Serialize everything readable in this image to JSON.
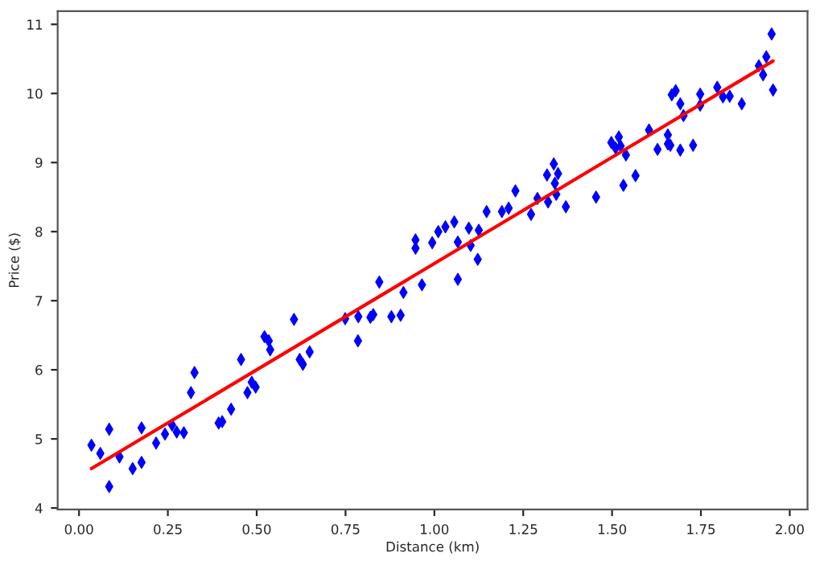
{
  "chart_data": {
    "type": "scatter",
    "xlabel": "Distance (km)",
    "ylabel": "Price ($)",
    "xlim": [
      -0.06,
      2.05
    ],
    "ylim": [
      3.98,
      11.19
    ],
    "xticks": [
      {
        "value": 0,
        "label": "0.00"
      },
      {
        "value": 0.25,
        "label": "0.25"
      },
      {
        "value": 0.5,
        "label": "0.50"
      },
      {
        "value": 0.75,
        "label": "0.75"
      },
      {
        "value": 1,
        "label": "1.00"
      },
      {
        "value": 1.25,
        "label": "1.25"
      },
      {
        "value": 1.5,
        "label": "1.50"
      },
      {
        "value": 1.75,
        "label": "1.75"
      },
      {
        "value": 2,
        "label": "2.00"
      }
    ],
    "yticks": [
      4,
      5,
      6,
      7,
      8,
      9,
      10,
      11
    ],
    "grid": false,
    "legend": false,
    "series": [
      {
        "color": "#0000ff",
        "marker": "diamond",
        "x": [
          0.035,
          0.06,
          0.085,
          0.085,
          0.114,
          0.151,
          0.176,
          0.176,
          0.217,
          0.242,
          0.262,
          0.275,
          0.295,
          0.315,
          0.325,
          0.393,
          0.403,
          0.428,
          0.456,
          0.474,
          0.486,
          0.497,
          0.522,
          0.534,
          0.538,
          0.605,
          0.621,
          0.63,
          0.649,
          0.749,
          0.786,
          0.785,
          0.82,
          0.828,
          0.845,
          0.879,
          0.905,
          0.913,
          0.965,
          0.947,
          0.947,
          0.994,
          1.011,
          1.031,
          1.056,
          1.066,
          1.097,
          1.102,
          1.122,
          1.125,
          1.066,
          1.147,
          1.19,
          1.209,
          1.228,
          1.272,
          1.29,
          1.317,
          1.32,
          1.336,
          1.339,
          1.343,
          1.348,
          1.37,
          1.455,
          1.498,
          1.51,
          1.519,
          1.524,
          1.539,
          1.532,
          1.566,
          1.604,
          1.628,
          1.657,
          1.657,
          1.664,
          1.692,
          1.728,
          1.668,
          1.679,
          1.692,
          1.701,
          1.748,
          1.748,
          1.796,
          1.812,
          1.831,
          1.865,
          1.913,
          1.925,
          1.934,
          1.949,
          1.953
        ],
        "values": [
          4.91,
          4.79,
          5.14,
          4.31,
          4.74,
          4.57,
          5.16,
          4.66,
          4.94,
          5.07,
          5.2,
          5.1,
          5.09,
          5.67,
          5.96,
          5.23,
          5.25,
          5.43,
          6.15,
          5.67,
          5.82,
          5.75,
          6.48,
          6.42,
          6.29,
          6.73,
          6.15,
          6.08,
          6.26,
          6.74,
          6.77,
          6.42,
          6.76,
          6.8,
          7.27,
          6.77,
          6.79,
          7.12,
          7.23,
          7.88,
          7.76,
          7.84,
          8.0,
          8.07,
          8.14,
          7.85,
          8.05,
          7.8,
          7.6,
          8.02,
          7.31,
          8.29,
          8.29,
          8.34,
          8.59,
          8.25,
          8.48,
          8.82,
          8.43,
          8.98,
          8.7,
          8.54,
          8.84,
          8.36,
          8.5,
          9.29,
          9.21,
          9.37,
          9.24,
          9.11,
          8.67,
          8.81,
          9.47,
          9.19,
          9.4,
          9.27,
          9.25,
          9.18,
          9.25,
          9.98,
          10.04,
          9.85,
          9.68,
          9.99,
          9.83,
          10.09,
          9.95,
          9.96,
          9.85,
          10.4,
          10.27,
          10.53,
          10.86,
          10.05
        ]
      },
      {
        "type": "line",
        "color": "#ff0000",
        "line_style": "solid",
        "x": [
          0.035,
          1.953
        ],
        "values": [
          4.57,
          10.47
        ]
      }
    ]
  }
}
